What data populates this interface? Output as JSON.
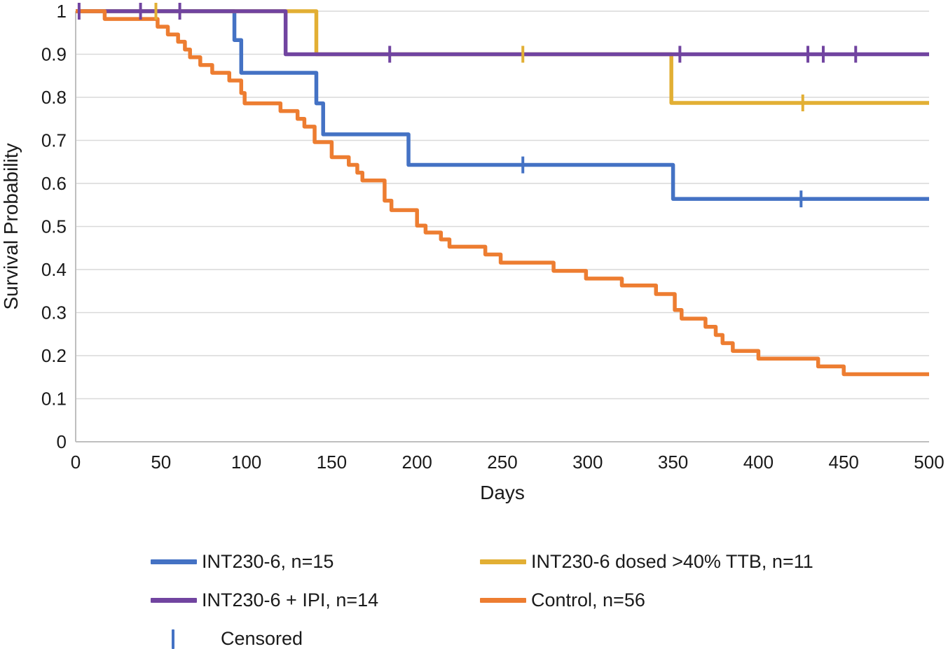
{
  "chart_data": {
    "type": "line",
    "subtype": "kaplan-meier-step",
    "title": "",
    "xlabel": "Days",
    "ylabel": "Survival Probability",
    "xlim": [
      0,
      500
    ],
    "xtick_step": 50,
    "ylim": [
      0,
      1
    ],
    "ytick_step": 0.1,
    "grid": "horizontal-only",
    "grid_color": "#D9D9D9",
    "axis_color": "#BFBFBF",
    "text_color": "#1a1a1a",
    "series": [
      {
        "name": "INT230-6",
        "label": "INT230-6, n=15",
        "n": 15,
        "color": "#4472C4",
        "step_points": [
          [
            0,
            1
          ],
          [
            93,
            0.933
          ],
          [
            97,
            0.857
          ],
          [
            141,
            0.786
          ],
          [
            145,
            0.714
          ],
          [
            195,
            0.643
          ],
          [
            350,
            0.564
          ],
          [
            500,
            0.564
          ]
        ],
        "censored": [
          [
            262,
            0.643
          ],
          [
            425,
            0.564
          ]
        ]
      },
      {
        "name": "INT230-6 dosed >40% TTB",
        "label": "INT230-6 dosed >40% TTB, n=11",
        "n": 11,
        "color": "#E2AF34",
        "step_points": [
          [
            0,
            1
          ],
          [
            141,
            0.9
          ],
          [
            349,
            0.787
          ],
          [
            500,
            0.787
          ]
        ],
        "censored": [
          [
            47,
            1
          ],
          [
            262,
            0.9
          ],
          [
            426,
            0.787
          ]
        ]
      },
      {
        "name": "INT230-6 + IPI",
        "label": "INT230-6 + IPI, n=14",
        "n": 14,
        "color": "#7144A0",
        "step_points": [
          [
            0,
            1
          ],
          [
            123,
            0.9
          ],
          [
            500,
            0.9
          ]
        ],
        "censored": [
          [
            2,
            1
          ],
          [
            38,
            1
          ],
          [
            61,
            1
          ],
          [
            184,
            0.9
          ],
          [
            354,
            0.9
          ],
          [
            429,
            0.9
          ],
          [
            438,
            0.9
          ],
          [
            457,
            0.9
          ]
        ]
      },
      {
        "name": "Control",
        "label": "Control, n=56",
        "n": 56,
        "color": "#ED7D31",
        "step_points": [
          [
            0,
            1
          ],
          [
            17,
            0.982
          ],
          [
            48,
            0.964
          ],
          [
            54,
            0.946
          ],
          [
            60,
            0.929
          ],
          [
            64,
            0.911
          ],
          [
            67,
            0.893
          ],
          [
            73,
            0.875
          ],
          [
            80,
            0.857
          ],
          [
            90,
            0.839
          ],
          [
            97,
            0.81
          ],
          [
            99,
            0.786
          ],
          [
            120,
            0.768
          ],
          [
            130,
            0.75
          ],
          [
            134,
            0.732
          ],
          [
            140,
            0.696
          ],
          [
            150,
            0.661
          ],
          [
            160,
            0.643
          ],
          [
            165,
            0.625
          ],
          [
            168,
            0.607
          ],
          [
            181,
            0.56
          ],
          [
            185,
            0.538
          ],
          [
            200,
            0.502
          ],
          [
            205,
            0.486
          ],
          [
            214,
            0.47
          ],
          [
            219,
            0.453
          ],
          [
            240,
            0.435
          ],
          [
            249,
            0.416
          ],
          [
            280,
            0.397
          ],
          [
            299,
            0.379
          ],
          [
            320,
            0.363
          ],
          [
            340,
            0.343
          ],
          [
            351,
            0.306
          ],
          [
            355,
            0.286
          ],
          [
            369,
            0.267
          ],
          [
            375,
            0.248
          ],
          [
            379,
            0.229
          ],
          [
            385,
            0.211
          ],
          [
            400,
            0.193
          ],
          [
            435,
            0.175
          ],
          [
            450,
            0.157
          ],
          [
            500,
            0.157
          ]
        ],
        "censored": []
      }
    ],
    "legend": {
      "position": "bottom",
      "columns": 2,
      "censored_label": "Censored"
    }
  }
}
